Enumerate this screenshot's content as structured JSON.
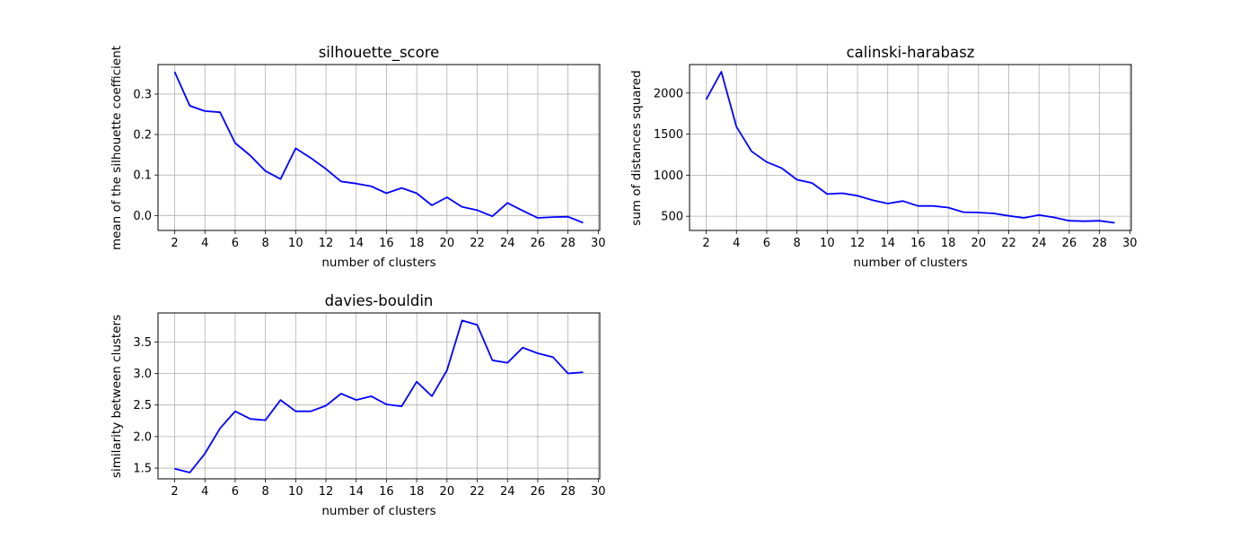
{
  "line_color": "#0000ff",
  "grid_color": "#b0b0b0",
  "chart_data": [
    {
      "type": "line",
      "title": "silhouette_score",
      "xlabel": "number of clusters",
      "ylabel": "mean of the silhouette coefficient",
      "grid": true,
      "xlim": [
        0.9,
        30.1
      ],
      "ylim": [
        -0.037,
        0.373
      ],
      "xticks": [
        2,
        4,
        6,
        8,
        10,
        12,
        14,
        16,
        18,
        20,
        22,
        24,
        26,
        28,
        30
      ],
      "xtick_labels": [
        "2",
        "4",
        "6",
        "8",
        "10",
        "12",
        "14",
        "16",
        "18",
        "20",
        "22",
        "24",
        "26",
        "28",
        "30"
      ],
      "yticks": [
        0.0,
        0.1,
        0.2,
        0.3
      ],
      "ytick_labels": [
        "0.0",
        "0.1",
        "0.2",
        "0.3"
      ],
      "series": [
        {
          "x": [
            2,
            3,
            4,
            5,
            6,
            7,
            8,
            9,
            10,
            11,
            12,
            13,
            14,
            15,
            16,
            17,
            18,
            19,
            20,
            21,
            22,
            23,
            24,
            25,
            26,
            27,
            28,
            29
          ],
          "values": [
            0.355,
            0.271,
            0.258,
            0.255,
            0.179,
            0.148,
            0.11,
            0.09,
            0.166,
            0.142,
            0.115,
            0.084,
            0.079,
            0.072,
            0.055,
            0.068,
            0.055,
            0.025,
            0.045,
            0.021,
            0.013,
            -0.002,
            0.031,
            0.012,
            -0.006,
            -0.004,
            -0.003,
            -0.018
          ]
        }
      ]
    },
    {
      "type": "line",
      "title": "calinski-harabasz",
      "xlabel": "number of clusters",
      "ylabel": "sum of distances squared",
      "grid": true,
      "xlim": [
        0.9,
        30.1
      ],
      "ylim": [
        327,
        2347
      ],
      "xticks": [
        2,
        4,
        6,
        8,
        10,
        12,
        14,
        16,
        18,
        20,
        22,
        24,
        26,
        28,
        30
      ],
      "xtick_labels": [
        "2",
        "4",
        "6",
        "8",
        "10",
        "12",
        "14",
        "16",
        "18",
        "20",
        "22",
        "24",
        "26",
        "28",
        "30"
      ],
      "yticks": [
        500,
        1000,
        1500,
        2000
      ],
      "ytick_labels": [
        "500",
        "1000",
        "1500",
        "2000"
      ],
      "series": [
        {
          "x": [
            2,
            3,
            4,
            5,
            6,
            7,
            8,
            9,
            10,
            11,
            12,
            13,
            14,
            15,
            16,
            17,
            18,
            19,
            20,
            21,
            22,
            23,
            24,
            25,
            26,
            27,
            28,
            29
          ],
          "values": [
            1920,
            2260,
            1590,
            1290,
            1160,
            1085,
            945,
            905,
            770,
            780,
            750,
            695,
            655,
            685,
            625,
            625,
            605,
            550,
            545,
            535,
            505,
            480,
            515,
            485,
            445,
            440,
            445,
            420
          ]
        }
      ]
    },
    {
      "type": "line",
      "title": "davies-bouldin",
      "xlabel": "number of clusters",
      "ylabel": "similarity between clusters",
      "grid": true,
      "xlim": [
        0.9,
        30.1
      ],
      "ylim": [
        1.33,
        3.96
      ],
      "xticks": [
        2,
        4,
        6,
        8,
        10,
        12,
        14,
        16,
        18,
        20,
        22,
        24,
        26,
        28,
        30
      ],
      "xtick_labels": [
        "2",
        "4",
        "6",
        "8",
        "10",
        "12",
        "14",
        "16",
        "18",
        "20",
        "22",
        "24",
        "26",
        "28",
        "30"
      ],
      "yticks": [
        1.5,
        2.0,
        2.5,
        3.0,
        3.5
      ],
      "ytick_labels": [
        "1.5",
        "2.0",
        "2.5",
        "3.0",
        "3.5"
      ],
      "series": [
        {
          "x": [
            2,
            3,
            4,
            5,
            6,
            7,
            8,
            9,
            10,
            11,
            12,
            13,
            14,
            15,
            16,
            17,
            18,
            19,
            20,
            21,
            22,
            23,
            24,
            25,
            26,
            27,
            28,
            29
          ],
          "values": [
            1.49,
            1.43,
            1.73,
            2.13,
            2.4,
            2.28,
            2.26,
            2.58,
            2.4,
            2.4,
            2.49,
            2.68,
            2.58,
            2.64,
            2.51,
            2.48,
            2.87,
            2.64,
            3.05,
            3.84,
            3.77,
            3.21,
            3.17,
            3.41,
            3.32,
            3.26,
            3.0,
            3.02
          ]
        }
      ]
    }
  ]
}
